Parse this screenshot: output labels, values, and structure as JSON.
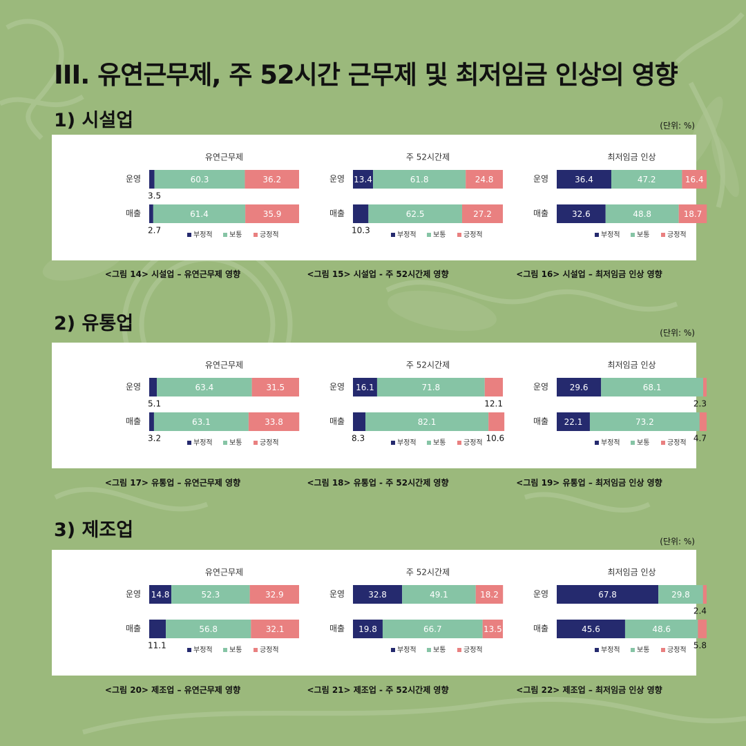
{
  "title": "III. 유연근무제, 주 52시간 근무제 및 최저임금 인상의 영향",
  "unit_label": "(단위: %)",
  "legend": [
    "부정적",
    "보통",
    "긍정적"
  ],
  "colors": {
    "negative": "#252a6e",
    "neutral": "#86c4a5",
    "positive": "#e98080"
  },
  "sections": [
    {
      "title": "1) 시설업",
      "charts": [
        {
          "caption": "<그림 14> 시설업 – 유연근무제 영향",
          "chart_data": {
            "type": "bar",
            "stacked": true,
            "orientation": "horizontal",
            "title": "유연근무제",
            "categories": [
              "운영",
              "매출"
            ],
            "series": [
              {
                "name": "부정적",
                "values": [
                  3.5,
                  2.7
                ]
              },
              {
                "name": "보통",
                "values": [
                  60.3,
                  61.4
                ]
              },
              {
                "name": "긍정적",
                "values": [
                  36.2,
                  35.9
                ]
              }
            ],
            "legend": "bottom",
            "xlim": [
              0,
              100
            ]
          }
        },
        {
          "caption": "<그림 15> 시설업 - 주 52시간제 영향",
          "chart_data": {
            "type": "bar",
            "stacked": true,
            "orientation": "horizontal",
            "title": "주 52시간제",
            "categories": [
              "운영",
              "매출"
            ],
            "series": [
              {
                "name": "부정적",
                "values": [
                  13.4,
                  10.3
                ]
              },
              {
                "name": "보통",
                "values": [
                  61.8,
                  62.5
                ]
              },
              {
                "name": "긍정적",
                "values": [
                  24.8,
                  27.2
                ]
              }
            ],
            "legend": "bottom",
            "xlim": [
              0,
              100
            ]
          }
        },
        {
          "caption": "<그림 16> 시설업 – 최저임금 인상 영향",
          "chart_data": {
            "type": "bar",
            "stacked": true,
            "orientation": "horizontal",
            "title": "최저임금 인상",
            "categories": [
              "운영",
              "매출"
            ],
            "series": [
              {
                "name": "부정적",
                "values": [
                  36.4,
                  32.6
                ]
              },
              {
                "name": "보통",
                "values": [
                  47.2,
                  48.8
                ]
              },
              {
                "name": "긍정적",
                "values": [
                  16.4,
                  18.7
                ]
              }
            ],
            "legend": "bottom",
            "xlim": [
              0,
              100
            ]
          }
        }
      ]
    },
    {
      "title": "2) 유통업",
      "charts": [
        {
          "caption": "<그림 17> 유통업 – 유연근무제 영향",
          "chart_data": {
            "type": "bar",
            "stacked": true,
            "orientation": "horizontal",
            "title": "유연근무제",
            "categories": [
              "운영",
              "매출"
            ],
            "series": [
              {
                "name": "부정적",
                "values": [
                  5.1,
                  3.2
                ]
              },
              {
                "name": "보통",
                "values": [
                  63.4,
                  63.1
                ]
              },
              {
                "name": "긍정적",
                "values": [
                  31.5,
                  33.8
                ]
              }
            ],
            "legend": "bottom",
            "xlim": [
              0,
              100
            ]
          }
        },
        {
          "caption": "<그림 18> 유통업 - 주 52시간제 영향",
          "chart_data": {
            "type": "bar",
            "stacked": true,
            "orientation": "horizontal",
            "title": "주 52시간제",
            "categories": [
              "운영",
              "매출"
            ],
            "series": [
              {
                "name": "부정적",
                "values": [
                  16.1,
                  8.3
                ]
              },
              {
                "name": "보통",
                "values": [
                  71.8,
                  82.1
                ]
              },
              {
                "name": "긍정적",
                "values": [
                  12.1,
                  10.6
                ]
              }
            ],
            "legend": "bottom",
            "xlim": [
              0,
              100
            ]
          }
        },
        {
          "caption": "<그림 19> 유통업 – 최저임금 인상 영향",
          "chart_data": {
            "type": "bar",
            "stacked": true,
            "orientation": "horizontal",
            "title": "최저임금 인상",
            "categories": [
              "운영",
              "매출"
            ],
            "series": [
              {
                "name": "부정적",
                "values": [
                  29.6,
                  22.1
                ]
              },
              {
                "name": "보통",
                "values": [
                  68.1,
                  73.2
                ]
              },
              {
                "name": "긍정적",
                "values": [
                  2.3,
                  4.7
                ]
              }
            ],
            "legend": "bottom",
            "xlim": [
              0,
              100
            ]
          }
        }
      ]
    },
    {
      "title": "3) 제조업",
      "charts": [
        {
          "caption": "<그림 20> 제조업 – 유연근무제 영향",
          "chart_data": {
            "type": "bar",
            "stacked": true,
            "orientation": "horizontal",
            "title": "유연근무제",
            "categories": [
              "운영",
              "매출"
            ],
            "series": [
              {
                "name": "부정적",
                "values": [
                  14.8,
                  11.1
                ]
              },
              {
                "name": "보통",
                "values": [
                  52.3,
                  56.8
                ]
              },
              {
                "name": "긍정적",
                "values": [
                  32.9,
                  32.1
                ]
              }
            ],
            "legend": "bottom",
            "xlim": [
              0,
              100
            ]
          }
        },
        {
          "caption": "<그림 21> 제조업 - 주 52시간제 영향",
          "chart_data": {
            "type": "bar",
            "stacked": true,
            "orientation": "horizontal",
            "title": "주 52시간제",
            "categories": [
              "운영",
              "매출"
            ],
            "series": [
              {
                "name": "부정적",
                "values": [
                  32.8,
                  19.8
                ]
              },
              {
                "name": "보통",
                "values": [
                  49.1,
                  66.7
                ]
              },
              {
                "name": "긍정적",
                "values": [
                  18.2,
                  13.5
                ]
              }
            ],
            "legend": "bottom",
            "xlim": [
              0,
              100
            ]
          }
        },
        {
          "caption": "<그림 22> 제조업 – 최저임금 인상 영향",
          "chart_data": {
            "type": "bar",
            "stacked": true,
            "orientation": "horizontal",
            "title": "최저임금 인상",
            "categories": [
              "운영",
              "매출"
            ],
            "series": [
              {
                "name": "부정적",
                "values": [
                  67.8,
                  45.6
                ]
              },
              {
                "name": "보통",
                "values": [
                  29.8,
                  48.6
                ]
              },
              {
                "name": "긍정적",
                "values": [
                  2.4,
                  5.8
                ]
              }
            ],
            "legend": "bottom",
            "xlim": [
              0,
              100
            ]
          }
        }
      ]
    }
  ]
}
